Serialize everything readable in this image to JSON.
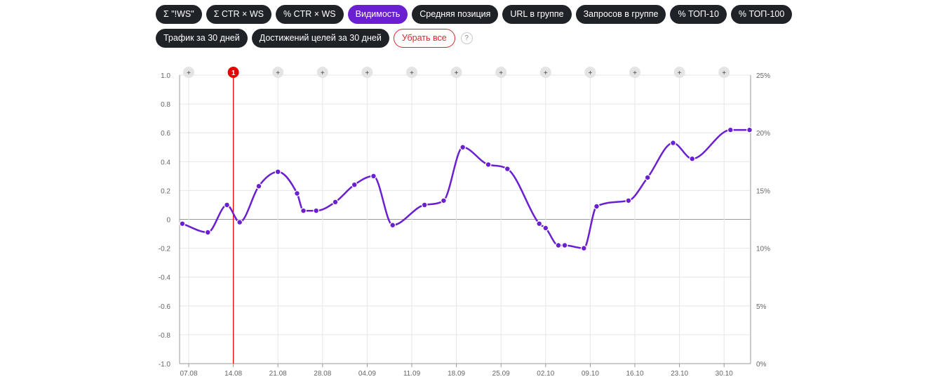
{
  "filters": {
    "row1": [
      {
        "label": "Σ \"!WS\"",
        "active": false
      },
      {
        "label": "Σ CTR × WS",
        "active": false
      },
      {
        "label": "% CTR × WS",
        "active": false
      },
      {
        "label": "Видимость",
        "active": true
      },
      {
        "label": "Средняя позиция",
        "active": false
      },
      {
        "label": "URL в группе",
        "active": false
      },
      {
        "label": "Запросов в группе",
        "active": false
      },
      {
        "label": "% ТОП-10",
        "active": false
      },
      {
        "label": "% ТОП-100",
        "active": false
      }
    ],
    "row2": [
      {
        "label": "Трафик за 30 дней",
        "active": false
      },
      {
        "label": "Достижений целей за 30 дней",
        "active": false
      }
    ],
    "clear_all": "Убрать все",
    "help": "?"
  },
  "colors": {
    "line": "#6a1fd0",
    "marker": "#e60000",
    "pill_dark": "#1f2328",
    "pill_active": "#6a1fd0",
    "clear_border": "#d7282f"
  },
  "chart_data": {
    "type": "line",
    "x_ticks": [
      "07.08",
      "14.08",
      "21.08",
      "28.08",
      "04.09",
      "11.09",
      "18.09",
      "25.09",
      "02.10",
      "09.10",
      "16.10",
      "23.10",
      "30.10"
    ],
    "y_left": {
      "min": -1.0,
      "max": 1.0,
      "ticks": [
        "1.0",
        "0.8",
        "0.6",
        "0.4",
        "0.2",
        "0",
        "-0.2",
        "-0.4",
        "-0.6",
        "-0.8",
        "-1.0"
      ]
    },
    "y_right": {
      "ticks": [
        "25%",
        "20%",
        "15%",
        "10%",
        "5%",
        "0%"
      ]
    },
    "grid": true,
    "marker_label": "1",
    "marker_at": "14.08",
    "add_marker_symbol": "+",
    "series": [
      {
        "values": [
          {
            "x": "06.08",
            "y": -0.03
          },
          {
            "x": "10.08",
            "y": -0.09
          },
          {
            "x": "13.08",
            "y": 0.1
          },
          {
            "x": "15.08",
            "y": -0.02
          },
          {
            "x": "18.08",
            "y": 0.23
          },
          {
            "x": "21.08",
            "y": 0.33
          },
          {
            "x": "24.08",
            "y": 0.18
          },
          {
            "x": "25.08",
            "y": 0.06
          },
          {
            "x": "27.08",
            "y": 0.06
          },
          {
            "x": "30.08",
            "y": 0.12
          },
          {
            "x": "02.09",
            "y": 0.24
          },
          {
            "x": "05.09",
            "y": 0.3
          },
          {
            "x": "08.09",
            "y": -0.04
          },
          {
            "x": "13.09",
            "y": 0.1
          },
          {
            "x": "16.09",
            "y": 0.13
          },
          {
            "x": "19.09",
            "y": 0.5
          },
          {
            "x": "23.09",
            "y": 0.38
          },
          {
            "x": "26.09",
            "y": 0.35
          },
          {
            "x": "01.10",
            "y": -0.03
          },
          {
            "x": "02.10",
            "y": -0.06
          },
          {
            "x": "04.10",
            "y": -0.18
          },
          {
            "x": "05.10",
            "y": -0.18
          },
          {
            "x": "08.10",
            "y": -0.2
          },
          {
            "x": "10.10",
            "y": 0.09
          },
          {
            "x": "15.10",
            "y": 0.13
          },
          {
            "x": "18.10",
            "y": 0.29
          },
          {
            "x": "22.10",
            "y": 0.53
          },
          {
            "x": "25.10",
            "y": 0.42
          },
          {
            "x": "31.10",
            "y": 0.62
          },
          {
            "x": "03.11",
            "y": 0.62
          }
        ]
      }
    ]
  }
}
